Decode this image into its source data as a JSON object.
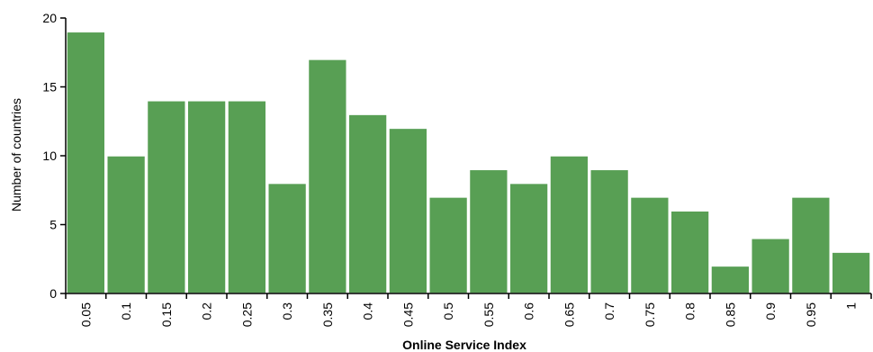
{
  "chart_data": {
    "type": "bar",
    "title": "",
    "xlabel": "Online Service Index",
    "ylabel": "Number of countries",
    "categories": [
      "0.05",
      "0.1",
      "0.15",
      "0.2",
      "0.25",
      "0.3",
      "0.35",
      "0.4",
      "0.45",
      "0.5",
      "0.55",
      "0.6",
      "0.65",
      "0.7",
      "0.75",
      "0.8",
      "0.85",
      "0.9",
      "0.95",
      "1"
    ],
    "values": [
      19,
      10,
      14,
      14,
      14,
      8,
      17,
      13,
      12,
      7,
      9,
      8,
      10,
      9,
      7,
      6,
      2,
      4,
      7,
      3
    ],
    "yticks": [
      0,
      5,
      10,
      15,
      20
    ],
    "ylim": [
      0,
      20
    ],
    "grid": false,
    "legend": "none",
    "bar_color": "#589f54"
  }
}
